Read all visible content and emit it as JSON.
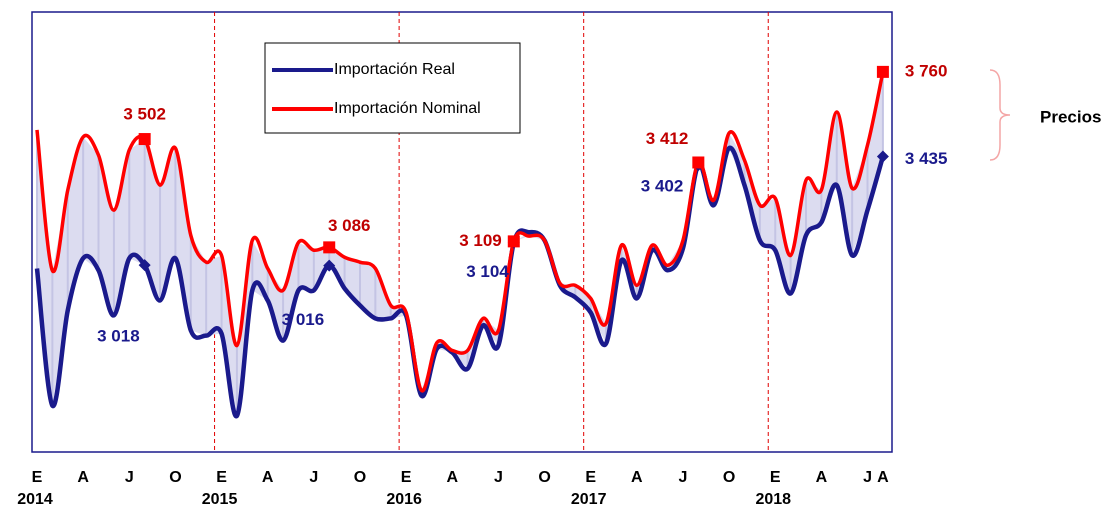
{
  "chart_data": {
    "type": "line",
    "categories": [
      "E",
      null,
      null,
      "A",
      null,
      null,
      "J",
      null,
      null,
      "O",
      null,
      null,
      "E",
      null,
      null,
      "A",
      null,
      null,
      "J",
      null,
      null,
      "O",
      null,
      null,
      "E",
      null,
      null,
      "A",
      null,
      null,
      "J",
      null,
      null,
      "O",
      null,
      null,
      "E",
      null,
      null,
      "A",
      null,
      null,
      "J",
      null,
      null,
      "O",
      null,
      null,
      "E",
      null,
      null,
      "A",
      null,
      null,
      "J",
      "A"
    ],
    "years": [
      "2014",
      null,
      null,
      null,
      null,
      null,
      null,
      null,
      null,
      null,
      null,
      null,
      "2015",
      null,
      null,
      null,
      null,
      null,
      null,
      null,
      null,
      null,
      null,
      null,
      "2016",
      null,
      null,
      null,
      null,
      null,
      null,
      null,
      null,
      null,
      null,
      null,
      "2017",
      null,
      null,
      null,
      null,
      null,
      null,
      null,
      null,
      null,
      null,
      null,
      "2018",
      null,
      null,
      null,
      null,
      null,
      null,
      null
    ],
    "ylim": [
      2300,
      3990
    ],
    "series": [
      {
        "name": "Importación Real",
        "color": "#1a1a8c",
        "values": [
          3005,
          2478,
          2844,
          3044,
          2998,
          2825,
          3044,
          3018,
          2882,
          3044,
          2767,
          2747,
          2755,
          2439,
          2921,
          2882,
          2728,
          2921,
          2921,
          3016,
          2928,
          2863,
          2813,
          2813,
          2824,
          2516,
          2697,
          2682,
          2620,
          2786,
          2709,
          3104,
          3144,
          3113,
          2940,
          2894,
          2836,
          2717,
          3036,
          2890,
          3075,
          2998,
          3082,
          3402,
          3248,
          3467,
          3325,
          3113,
          3075,
          2909,
          3132,
          3182,
          3325,
          3055,
          3229,
          3435
        ],
        "value_labels": [
          null,
          null,
          null,
          null,
          null,
          null,
          null,
          "3 018",
          null,
          null,
          null,
          null,
          null,
          null,
          null,
          null,
          null,
          null,
          null,
          "3 016",
          null,
          null,
          null,
          null,
          null,
          null,
          null,
          null,
          null,
          null,
          null,
          "3 104",
          null,
          null,
          null,
          null,
          null,
          null,
          null,
          null,
          null,
          null,
          null,
          "3 402",
          null,
          null,
          null,
          null,
          null,
          null,
          null,
          null,
          null,
          null,
          null,
          "3 435"
        ]
      },
      {
        "name": "Importación Nominal",
        "color": "#ff0000",
        "values": [
          3537,
          2997,
          3306,
          3510,
          3440,
          3229,
          3460,
          3502,
          3325,
          3467,
          3132,
          3029,
          3055,
          2709,
          3113,
          3005,
          2921,
          3105,
          3075,
          3086,
          3048,
          3029,
          3005,
          2863,
          2836,
          2536,
          2720,
          2690,
          2690,
          2813,
          2767,
          3109,
          3129,
          3113,
          2948,
          2940,
          2890,
          2794,
          3094,
          2940,
          3094,
          3017,
          3113,
          3412,
          3267,
          3525,
          3421,
          3248,
          3275,
          3055,
          3344,
          3306,
          3606,
          3313,
          3479,
          3760
        ],
        "value_labels": [
          null,
          null,
          null,
          null,
          null,
          null,
          null,
          "3 502",
          null,
          null,
          null,
          null,
          null,
          null,
          null,
          null,
          null,
          null,
          null,
          "3 086",
          null,
          null,
          null,
          null,
          null,
          null,
          null,
          null,
          null,
          null,
          null,
          "3 109",
          null,
          null,
          null,
          null,
          null,
          null,
          null,
          null,
          null,
          null,
          null,
          "3 412",
          null,
          null,
          null,
          null,
          null,
          null,
          null,
          null,
          null,
          null,
          null,
          "3 760"
        ]
      }
    ],
    "annotation": "Precios"
  }
}
